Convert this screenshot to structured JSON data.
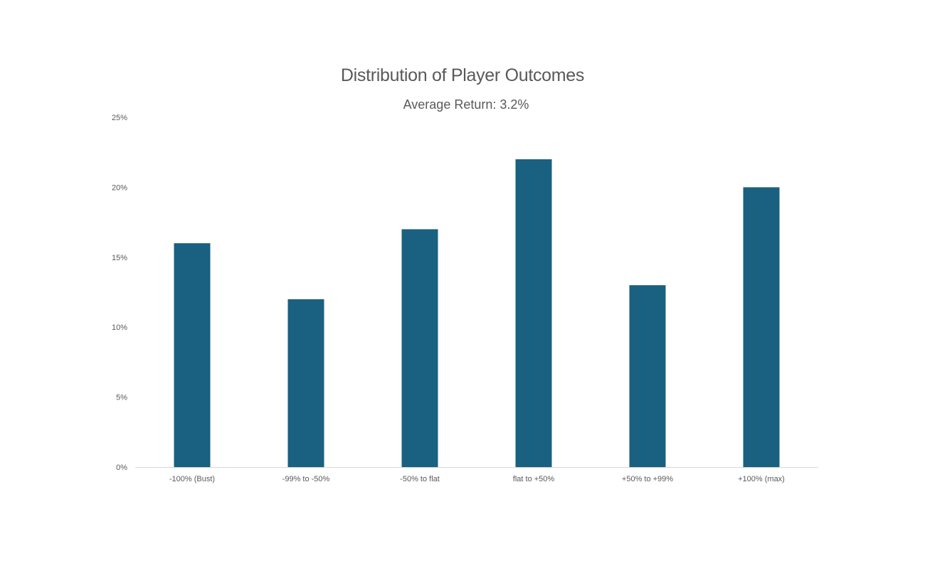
{
  "chart_data": {
    "type": "bar",
    "title": "Distribution of Player Outcomes",
    "subtitle": "Average Return: 3.2%",
    "categories": [
      "-100% (Bust)",
      "-99% to -50%",
      "-50% to flat",
      "flat to +50%",
      "+50% to +99%",
      "+100% (max)"
    ],
    "values": [
      16,
      12,
      17,
      22,
      13,
      20
    ],
    "ylim": [
      0,
      25
    ],
    "yticks": [
      0,
      5,
      10,
      15,
      20,
      25
    ],
    "ytick_labels": [
      "0%",
      "5%",
      "10%",
      "15%",
      "20%",
      "25%"
    ],
    "xlabel": "",
    "ylabel": "",
    "grid": false,
    "bar_color": "#1A6080",
    "axis_color": "#D9D9D9",
    "text_color": "#595959"
  }
}
